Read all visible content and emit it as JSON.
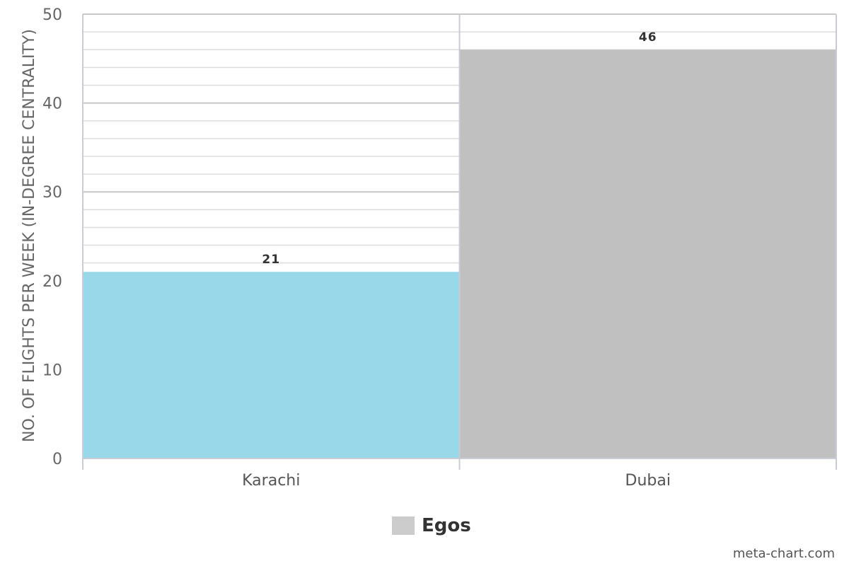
{
  "chart_data": {
    "type": "bar",
    "categories": [
      "Karachi",
      "Dubai"
    ],
    "values": [
      21,
      46
    ],
    "bar_colors": [
      "#99d8e8",
      "#c0c0c0"
    ],
    "data_labels": [
      "21",
      "46"
    ],
    "ylabel": "NO. OF FLIGHTS PER WEEK (IN-DEGREE CENTRALITY)",
    "xlabel": "",
    "ylim": [
      0,
      50
    ],
    "y_ticks": [
      "0",
      "10",
      "20",
      "30",
      "40",
      "50"
    ],
    "grid": true,
    "legend": {
      "position": "bottom-center",
      "entries": [
        {
          "name": "Egos",
          "color": "#cccccc"
        }
      ]
    }
  },
  "credit": "meta-chart.com"
}
